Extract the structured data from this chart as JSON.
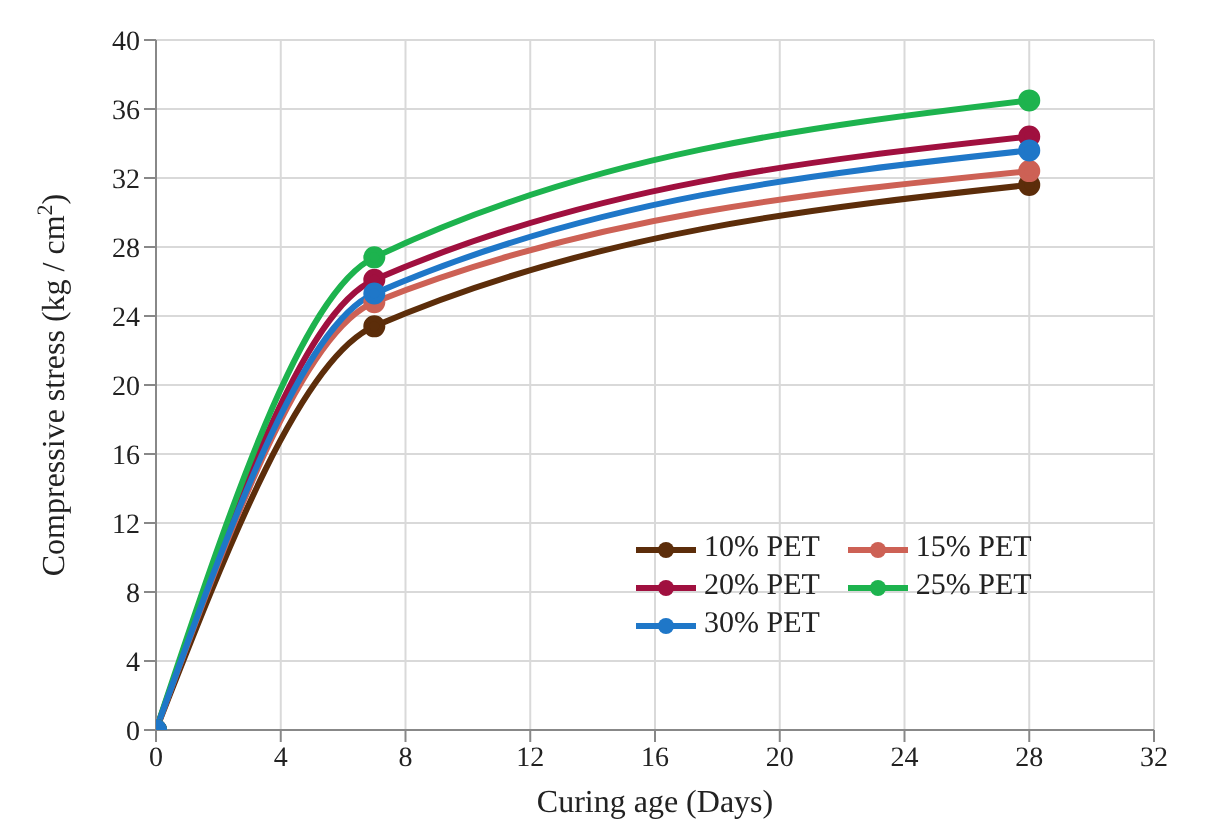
{
  "chart_data": {
    "type": "line",
    "xlabel": "Curing age (Days)",
    "ylabel": "Compressive stress (kg / cm$^{2}$)",
    "x": [
      0,
      7,
      28
    ],
    "series": [
      {
        "name": "10% PET",
        "color": "#5c2d0a",
        "values": [
          0,
          23.4,
          31.6
        ]
      },
      {
        "name": "15% PET",
        "color": "#cd6155",
        "values": [
          0,
          24.8,
          32.4
        ]
      },
      {
        "name": "20% PET",
        "color": "#a0103f",
        "values": [
          0,
          26.1,
          34.4
        ]
      },
      {
        "name": "25% PET",
        "color": "#1db34e",
        "values": [
          0,
          27.4,
          36.5
        ]
      },
      {
        "name": "30% PET",
        "color": "#1f77c8",
        "values": [
          0,
          25.3,
          33.6
        ]
      }
    ],
    "xlim": [
      0,
      32
    ],
    "xticks": [
      0,
      4,
      8,
      12,
      16,
      20,
      24,
      28,
      32
    ],
    "ylim": [
      0,
      40
    ],
    "yticks": [
      0,
      4,
      8,
      12,
      16,
      20,
      24,
      28,
      32,
      36,
      40
    ],
    "grid": true,
    "legend": "bottom right",
    "marker": "circle",
    "line_style": "solid"
  }
}
